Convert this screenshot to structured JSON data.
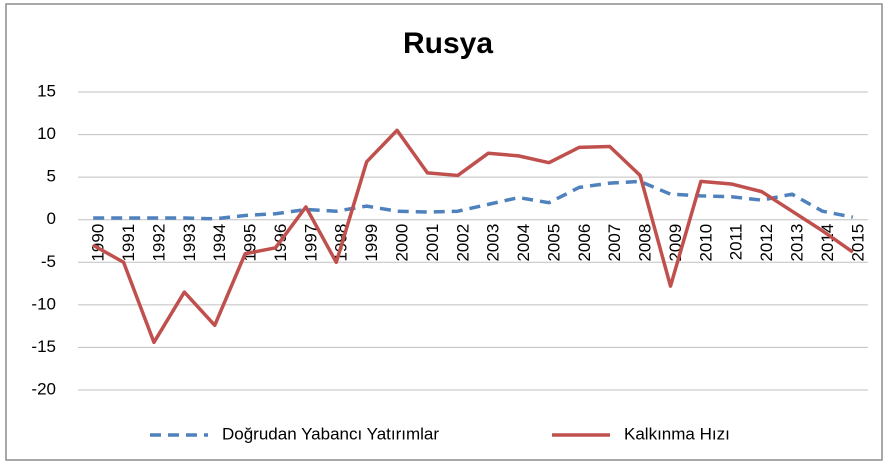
{
  "chart_data": {
    "type": "line",
    "title": "Rusya",
    "categories": [
      "1990",
      "1991",
      "1992",
      "1993",
      "1994",
      "1995",
      "1996",
      "1997",
      "1998",
      "1999",
      "2000",
      "2001",
      "2002",
      "2003",
      "2004",
      "2005",
      "2006",
      "2007",
      "2008",
      "2009",
      "2010",
      "2011",
      "2012",
      "2013",
      "2014",
      "2015"
    ],
    "series": [
      {
        "name": "Doğrudan Yabancı Yatırımlar",
        "color": "#4f81bd",
        "dashed": true,
        "values": [
          0.2,
          0.2,
          0.2,
          0.2,
          0.1,
          0.5,
          0.7,
          1.2,
          1.0,
          1.6,
          1.0,
          0.9,
          1.0,
          1.8,
          2.6,
          2.0,
          3.8,
          4.3,
          4.5,
          3.0,
          2.8,
          2.7,
          2.3,
          3.0,
          1.0,
          0.3
        ]
      },
      {
        "name": "Kalkınma Hızı",
        "color": "#c0504d",
        "dashed": false,
        "values": [
          -3.0,
          -5.0,
          -14.4,
          -8.5,
          -12.4,
          -4.0,
          -3.3,
          1.5,
          -5.0,
          6.8,
          10.5,
          5.5,
          5.2,
          7.8,
          7.5,
          6.7,
          8.5,
          8.6,
          5.2,
          -7.8,
          4.5,
          4.2,
          3.3,
          1.0,
          -1.3,
          -3.8
        ]
      }
    ],
    "ylim": [
      -20,
      15
    ],
    "yticks": [
      -20,
      -15,
      -10,
      -5,
      0,
      5,
      10,
      15
    ],
    "grid": true,
    "legend": "bottom"
  }
}
